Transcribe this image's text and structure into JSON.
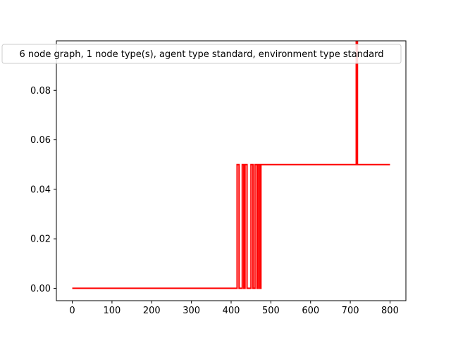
{
  "chart_data": {
    "type": "line",
    "title": "",
    "xlabel": "",
    "ylabel": "",
    "xlim": [
      -40,
      840
    ],
    "ylim": [
      -0.005,
      0.1
    ],
    "xticks": [
      0,
      100,
      200,
      300,
      400,
      500,
      600,
      700,
      800
    ],
    "xtick_labels": [
      "0",
      "100",
      "200",
      "300",
      "400",
      "500",
      "600",
      "700",
      "800"
    ],
    "yticks": [
      0.0,
      0.02,
      0.04,
      0.06,
      0.08
    ],
    "ytick_labels": [
      "0.00",
      "0.02",
      "0.04",
      "0.06",
      "0.08"
    ],
    "grid": false,
    "legend": {
      "placement": "top-center",
      "entries": [
        "6 node graph, 1 node type(s), agent type standard, environment type standard"
      ]
    },
    "colors": {
      "series": "#ff0000"
    },
    "series": [
      {
        "name": "6 node graph, 1 node type(s), agent type standard, environment type standard",
        "color": "#ff0000",
        "x": [
          0,
          415,
          415,
          420,
          420,
          428,
          428,
          432,
          432,
          435,
          435,
          440,
          440,
          450,
          450,
          455,
          455,
          460,
          460,
          465,
          465,
          468,
          468,
          472,
          472,
          475,
          475,
          715,
          715,
          718,
          718,
          800
        ],
        "y": [
          0,
          0,
          0.05,
          0.05,
          0,
          0,
          0.05,
          0.05,
          0,
          0,
          0.05,
          0.05,
          0,
          0,
          0.05,
          0.05,
          0,
          0,
          0.05,
          0.05,
          0,
          0,
          0.05,
          0.05,
          0,
          0,
          0.05,
          0.05,
          0.1,
          0.1,
          0.05,
          0.05
        ]
      }
    ]
  }
}
